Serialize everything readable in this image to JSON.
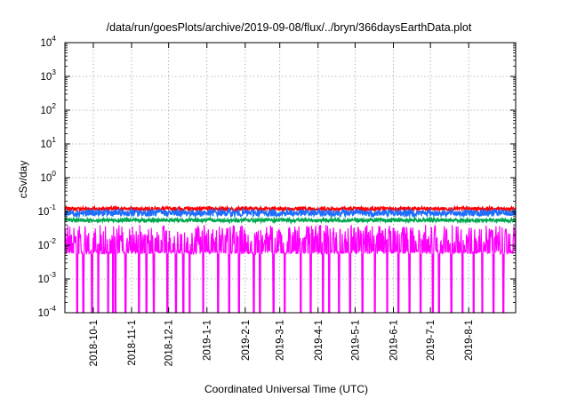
{
  "chart_data": {
    "type": "line",
    "title": "/data/run/goesPlots/archive/2019-09-08/flux/../bryn/366daysEarthData.plot",
    "xlabel": "Coordinated Universal Time (UTC)",
    "ylabel": "cSv/day",
    "y_scale": "log",
    "ylim": [
      0.0001,
      10000
    ],
    "y_ticks": [
      {
        "value": 0.0001,
        "base": "10",
        "exp": "-4"
      },
      {
        "value": 0.001,
        "base": "10",
        "exp": "-3"
      },
      {
        "value": 0.01,
        "base": "10",
        "exp": "-2"
      },
      {
        "value": 0.1,
        "base": "10",
        "exp": "-1"
      },
      {
        "value": 1,
        "base": "10",
        "exp": "0"
      },
      {
        "value": 10,
        "base": "10",
        "exp": "1"
      },
      {
        "value": 100,
        "base": "10",
        "exp": "2"
      },
      {
        "value": 1000,
        "base": "10",
        "exp": "3"
      },
      {
        "value": 10000,
        "base": "10",
        "exp": "4"
      }
    ],
    "xlim": [
      "2018-09-08",
      "2019-09-08"
    ],
    "x_ticks": [
      "2018-10-1",
      "2018-11-1",
      "2018-12-1",
      "2019-1-1",
      "2019-2-1",
      "2019-3-1",
      "2019-4-1",
      "2019-5-1",
      "2019-6-1",
      "2019-7-1",
      "2019-8-1"
    ],
    "grid": true,
    "legend": "none",
    "series": [
      {
        "color": "#ff0000",
        "typical": 0.12,
        "spread_dex": 0.05,
        "values": []
      },
      {
        "color": "#1f6fff",
        "typical": 0.09,
        "spread_dex": 0.1,
        "values": []
      },
      {
        "color": "#00a84f",
        "typical": 0.055,
        "spread_dex": 0.05,
        "values": []
      },
      {
        "color": "#ff00ff",
        "typical": 0.02,
        "spread_dex": 0.3,
        "floor": 0.0055,
        "min_dips": 0.0001,
        "dip_dates": [
          "2018-09-18",
          "2018-09-23",
          "2018-09-30",
          "2018-10-05",
          "2018-10-13",
          "2018-10-17",
          "2018-10-19",
          "2018-10-27",
          "2018-11-07",
          "2018-11-13",
          "2018-11-19",
          "2018-11-30",
          "2018-12-07",
          "2018-12-13",
          "2018-12-18",
          "2018-12-29",
          "2019-01-10",
          "2019-01-19",
          "2019-01-27",
          "2019-02-08",
          "2019-02-13",
          "2019-02-24",
          "2019-03-05",
          "2019-03-18",
          "2019-03-26",
          "2019-04-05",
          "2019-04-10",
          "2019-04-18",
          "2019-04-27",
          "2019-05-07",
          "2019-05-17",
          "2019-05-27",
          "2019-06-05",
          "2019-06-14",
          "2019-06-23",
          "2019-07-03",
          "2019-07-08",
          "2019-07-18",
          "2019-07-27",
          "2019-08-05",
          "2019-08-12",
          "2019-08-21",
          "2019-08-29"
        ],
        "values": []
      }
    ]
  }
}
